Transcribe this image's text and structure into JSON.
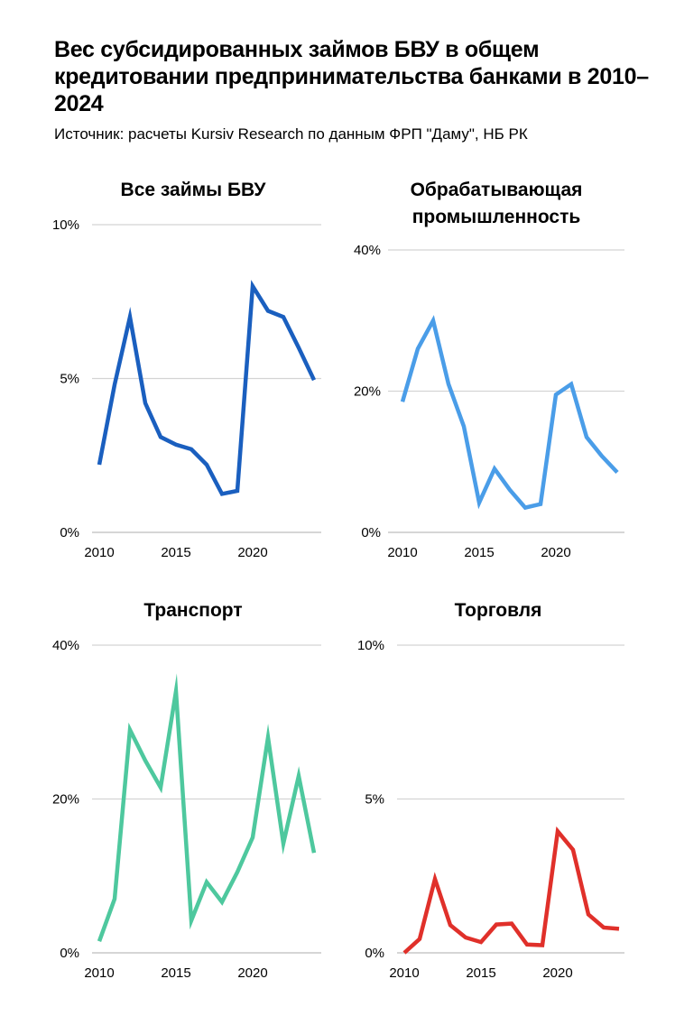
{
  "title": "Вес субсидированных займов БВУ в общем кредитовании предпринимательства банками в 2010–2024",
  "source": "Источник: расчеты Kursiv Research по данным ФРП \"Даму\", НБ РК",
  "chart_data": [
    {
      "type": "line",
      "title": "Все займы БВУ",
      "color": "#1a5fbf",
      "x": [
        2010,
        2011,
        2012,
        2013,
        2014,
        2015,
        2016,
        2017,
        2018,
        2019,
        2020,
        2021,
        2022,
        2023,
        2024
      ],
      "values": [
        2.2,
        4.8,
        7.0,
        4.2,
        3.1,
        2.85,
        2.7,
        2.2,
        1.25,
        1.35,
        8.0,
        7.2,
        7.0,
        6.0,
        4.95
      ],
      "ylim": [
        0,
        10
      ],
      "y_ticks": [
        "0%",
        "5%",
        "10%"
      ],
      "x_ticks": [
        "2010",
        "2015",
        "2020"
      ],
      "grid": true
    },
    {
      "type": "line",
      "title": "Обрабатывающая промышленность",
      "color": "#4a9de8",
      "x": [
        2010,
        2011,
        2012,
        2013,
        2014,
        2015,
        2016,
        2017,
        2018,
        2019,
        2020,
        2021,
        2022,
        2023,
        2024
      ],
      "values": [
        18.5,
        26,
        30,
        21,
        15,
        4.2,
        9,
        6,
        3.5,
        4,
        19.5,
        21,
        13.5,
        10.8,
        8.5
      ],
      "ylim": [
        0,
        40
      ],
      "y_ticks": [
        "0%",
        "20%",
        "40%"
      ],
      "x_ticks": [
        "2010",
        "2015",
        "2020"
      ],
      "grid": true
    },
    {
      "type": "line",
      "title": "Транспорт",
      "color": "#4ec89e",
      "x": [
        2010,
        2011,
        2012,
        2013,
        2014,
        2015,
        2016,
        2017,
        2018,
        2019,
        2020,
        2021,
        2022,
        2023,
        2024
      ],
      "values": [
        1.5,
        7,
        29,
        25,
        21.5,
        34,
        4.2,
        9.2,
        6.6,
        10.5,
        15,
        28,
        14.2,
        23,
        13
      ],
      "ylim": [
        0,
        40
      ],
      "y_ticks": [
        "0%",
        "20%",
        "40%"
      ],
      "x_ticks": [
        "2010",
        "2015",
        "2020"
      ],
      "grid": true
    },
    {
      "type": "line",
      "title": "Торговля",
      "color": "#e0302a",
      "x": [
        2010,
        2011,
        2012,
        2013,
        2014,
        2015,
        2016,
        2017,
        2018,
        2019,
        2020,
        2021,
        2022,
        2023,
        2024
      ],
      "values": [
        0.0,
        0.45,
        2.4,
        0.9,
        0.5,
        0.35,
        0.92,
        0.95,
        0.27,
        0.25,
        3.95,
        3.35,
        1.25,
        0.82,
        0.78
      ],
      "ylim": [
        0,
        10
      ],
      "y_ticks": [
        "0%",
        "5%",
        "10%"
      ],
      "x_ticks": [
        "2010",
        "2015",
        "2020"
      ],
      "grid": true
    }
  ]
}
